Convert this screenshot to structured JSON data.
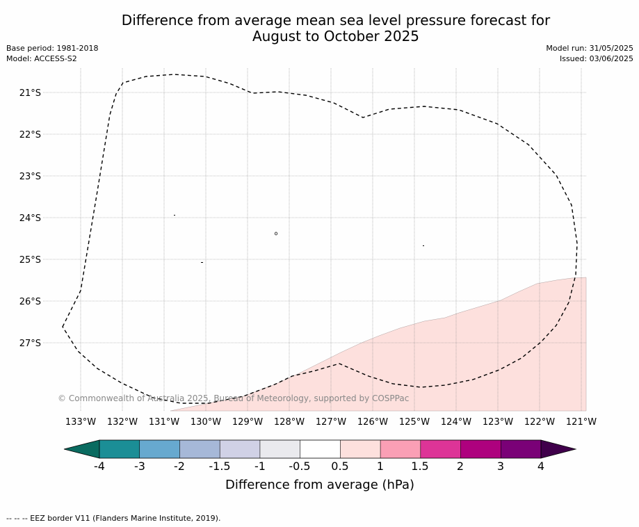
{
  "title_line1": "Difference from average mean sea level pressure forecast for",
  "title_line2": "August to October 2025",
  "base_period": "Base period: 1981-2018",
  "model": "Model: ACCESS-S2",
  "model_run": "Model run: 31/05/2025",
  "issued": "Issued: 03/06/2025",
  "copyright": "© Commonwealth of Australia 2025, Bureau of Meteorology, supported by COSPPac",
  "footer": "--  --  -- EEZ border V11 (Flanders Marine Institute, 2019).",
  "map": {
    "lat_labels": [
      "21°S",
      "22°S",
      "23°S",
      "24°S",
      "25°S",
      "26°S",
      "27°S"
    ],
    "lon_labels": [
      "133°W",
      "132°W",
      "131°W",
      "130°W",
      "129°W",
      "128°W",
      "127°W",
      "126°W",
      "125°W",
      "124°W",
      "123°W",
      "122°W",
      "121°W"
    ],
    "shaded_category": "0.5 to 1",
    "shaded_color": "#fde0dd",
    "eez_style": "dashed"
  },
  "colorbar": {
    "title": "Difference from average (hPa)",
    "tick_labels": [
      "-4",
      "-3",
      "-2",
      "-1.5",
      "-1",
      "-0.5",
      "0.5",
      "1",
      "1.5",
      "2",
      "3",
      "4"
    ],
    "under_color": "#0a6b60",
    "over_color": "#40004b",
    "colors": [
      "#1b8e96",
      "#67a9cf",
      "#a6b8d8",
      "#d0d1e6",
      "#eaeaee",
      "#ffffff",
      "#fde0dd",
      "#fa9fb5",
      "#dd3497",
      "#ae017e",
      "#7a0177"
    ]
  }
}
